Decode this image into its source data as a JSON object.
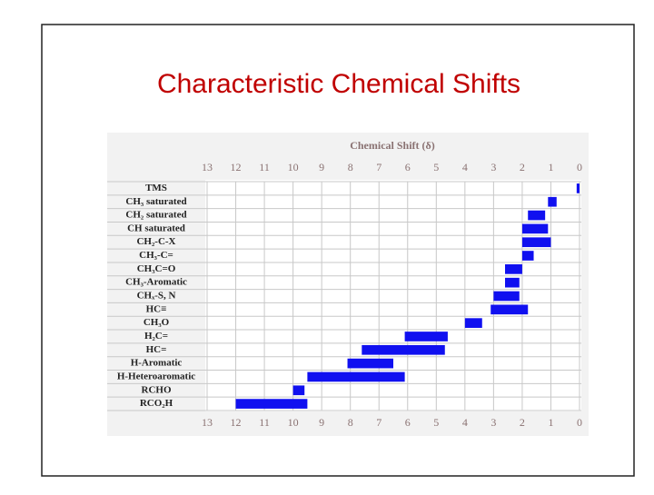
{
  "chart_data": {
    "type": "range",
    "title": "Characteristic Chemical Shifts",
    "xlabel": "Chemical Shift (δ)",
    "categories": [
      "TMS",
      "CH₃ saturated",
      "CH₂ saturated",
      "CH saturated",
      "CH₂-C-X",
      "CH₃-C=",
      "CH₃C=O",
      "CH₃-Aromatic",
      "CHₓ-S, N",
      "HC≡",
      "CH₃O",
      "H₂C=",
      "HC=",
      "H-Aromatic",
      "H-Heteroaromatic",
      "RCHO",
      "RCO₂H"
    ],
    "values": [
      [
        0,
        0.1
      ],
      [
        0.8,
        1.1
      ],
      [
        1.2,
        1.8
      ],
      [
        1.1,
        2.0
      ],
      [
        1.0,
        2.0
      ],
      [
        1.6,
        2.0
      ],
      [
        2.0,
        2.6
      ],
      [
        2.1,
        2.6
      ],
      [
        2.1,
        3.0
      ],
      [
        1.8,
        3.1
      ],
      [
        3.4,
        4.0
      ],
      [
        4.6,
        6.1
      ],
      [
        4.7,
        7.6
      ],
      [
        6.5,
        8.1
      ],
      [
        6.1,
        9.5
      ],
      [
        9.6,
        10.0
      ],
      [
        9.5,
        12.0
      ]
    ],
    "color": "#1010f0",
    "xlim": [
      13,
      0
    ],
    "xticks": [
      13,
      12,
      11,
      10,
      9,
      8,
      7,
      6,
      5,
      4,
      3,
      2,
      1,
      0
    ],
    "grid": true
  }
}
